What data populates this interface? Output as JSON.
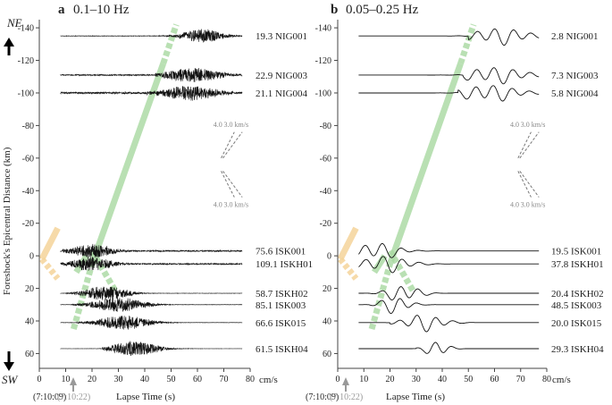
{
  "chart_data": [
    {
      "type": "line",
      "panel_letter": "a",
      "title": "0.1–10 Hz",
      "amp_unit": "cm/s",
      "ylabel": "Foreshock's Epicentral Distance (km)",
      "xlabel": "Lapse Time (s)",
      "x_ticks": [
        0,
        10,
        20,
        30,
        40,
        50,
        60,
        70,
        80
      ],
      "y_ticks": [
        -140,
        -120,
        -100,
        -80,
        -60,
        -40,
        -20,
        0,
        20,
        40,
        60
      ],
      "xlim": [
        0,
        80
      ],
      "ylim": [
        -145,
        68
      ],
      "origin_time": "(7:10:09)",
      "event_time": "(7:10:22)",
      "event_x": 12,
      "dir_top": "NE",
      "dir_bottom": "SW",
      "velocity_labels": [
        "4.0",
        "3.0 km/s"
      ],
      "traces": [
        {
          "station": "NIG001",
          "amp": "19.3",
          "distance": -135,
          "onset": 45,
          "peak": 62,
          "span": 20,
          "noise": 0.5
        },
        {
          "station": "NIG003",
          "amp": "22.9",
          "distance": -111,
          "onset": 44,
          "peak": 58,
          "span": 28,
          "noise": 1.2
        },
        {
          "station": "NIG004",
          "amp": "21.1",
          "distance": -100,
          "onset": 40,
          "peak": 57,
          "span": 28,
          "noise": 1.8
        },
        {
          "station": "ISKH01",
          "amp": "109.1",
          "distance": 5,
          "onset": 3,
          "peak": 20,
          "span": 20,
          "noise": 1.3
        },
        {
          "station": "ISK001",
          "amp": "75.6",
          "distance": -3,
          "onset": 3,
          "peak": 20,
          "span": 20,
          "noise": 1.3
        },
        {
          "station": "ISKH02",
          "amp": "58.7",
          "distance": 23,
          "onset": 10,
          "peak": 25,
          "span": 22,
          "noise": 0.3
        },
        {
          "station": "ISK003",
          "amp": "85.1",
          "distance": 30,
          "onset": 12,
          "peak": 30,
          "span": 26,
          "noise": 0.3
        },
        {
          "station": "ISK015",
          "amp": "66.6",
          "distance": 41,
          "onset": 14,
          "peak": 32,
          "span": 26,
          "noise": 0.3
        },
        {
          "station": "ISKH04",
          "amp": "61.5",
          "distance": 57,
          "onset": 24,
          "peak": 36,
          "span": 24,
          "noise": 0.2
        }
      ]
    },
    {
      "type": "line",
      "panel_letter": "b",
      "title": "0.05–0.25 Hz",
      "amp_unit": "cm/s",
      "xlabel": "Lapse Time (s)",
      "x_ticks": [
        0,
        10,
        20,
        30,
        40,
        50,
        60,
        70,
        80
      ],
      "y_ticks": [
        -140,
        -120,
        -100,
        -80,
        -60,
        -40,
        -20,
        0,
        20,
        40,
        60
      ],
      "xlim": [
        0,
        80
      ],
      "ylim": [
        -145,
        68
      ],
      "origin_time": "(7:10:09)",
      "event_time": "(7:10:22)",
      "event_x": 12,
      "velocity_labels": [
        "4.0",
        "3.0 km/s"
      ],
      "traces": [
        {
          "station": "NIG001",
          "amp": "2.8",
          "distance": -135,
          "onset": 50,
          "peak": 62,
          "span": 30
        },
        {
          "station": "NIG003",
          "amp": "7.3",
          "distance": -111,
          "onset": 48,
          "peak": 60,
          "span": 32
        },
        {
          "station": "NIG004",
          "amp": "5.8",
          "distance": -100,
          "onset": 46,
          "peak": 58,
          "span": 32
        },
        {
          "station": "ISKH01",
          "amp": "37.8",
          "distance": 5,
          "onset": 5,
          "peak": 18,
          "span": 26
        },
        {
          "station": "ISK001",
          "amp": "19.5",
          "distance": -3,
          "onset": 3,
          "peak": 15,
          "span": 24
        },
        {
          "station": "ISKH02",
          "amp": "20.4",
          "distance": 23,
          "onset": 10,
          "peak": 25,
          "span": 18
        },
        {
          "station": "ISK003",
          "amp": "48.5",
          "distance": 30,
          "onset": 12,
          "peak": 22,
          "span": 16
        },
        {
          "station": "ISK015",
          "amp": "20.0",
          "distance": 41,
          "onset": 20,
          "peak": 33,
          "span": 22
        },
        {
          "station": "ISKH04",
          "amp": "29.3",
          "distance": 57,
          "onset": 30,
          "peak": 38,
          "span": 12
        }
      ]
    }
  ]
}
